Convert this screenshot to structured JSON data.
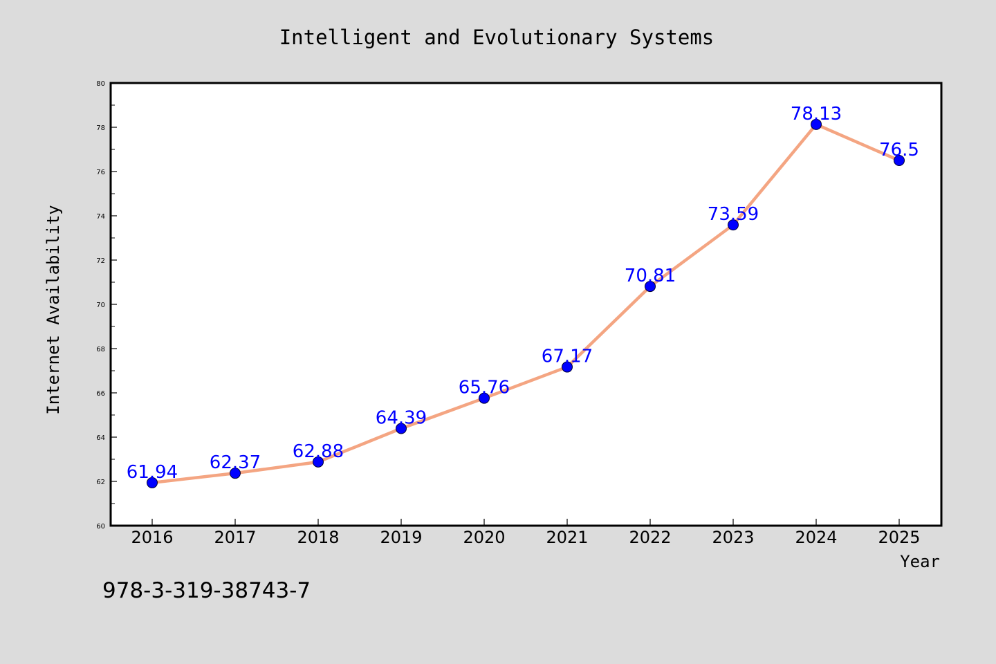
{
  "chart_data": {
    "type": "line",
    "title": "Intelligent and Evolutionary Systems",
    "xlabel": "Year",
    "ylabel": "Internet Availability",
    "categories": [
      "2016",
      "2017",
      "2018",
      "2019",
      "2020",
      "2021",
      "2022",
      "2023",
      "2024",
      "2025"
    ],
    "series": [
      {
        "values": [
          61.94,
          62.37,
          62.88,
          64.39,
          65.76,
          67.17,
          70.81,
          73.59,
          78.13,
          76.5
        ],
        "data_labels": [
          "61.94",
          "62.37",
          "62.88",
          "64.39",
          "65.76",
          "67.17",
          "70.81",
          "73.59",
          "78.13",
          "76.5"
        ],
        "line_color": "#f4a582",
        "marker_color": "#0000ff",
        "label_color": "#0000ff"
      }
    ],
    "ylim": [
      60,
      80
    ],
    "yticks": [
      "60",
      "62",
      "64",
      "66",
      "68",
      "70",
      "72",
      "74",
      "76",
      "78",
      "80"
    ],
    "grid": false,
    "legend": "none"
  },
  "footnote": "978-3-319-38743-7",
  "colors": {
    "background": "#dcdcdc",
    "plot_area": "#ffffff",
    "axes": "#000000"
  }
}
